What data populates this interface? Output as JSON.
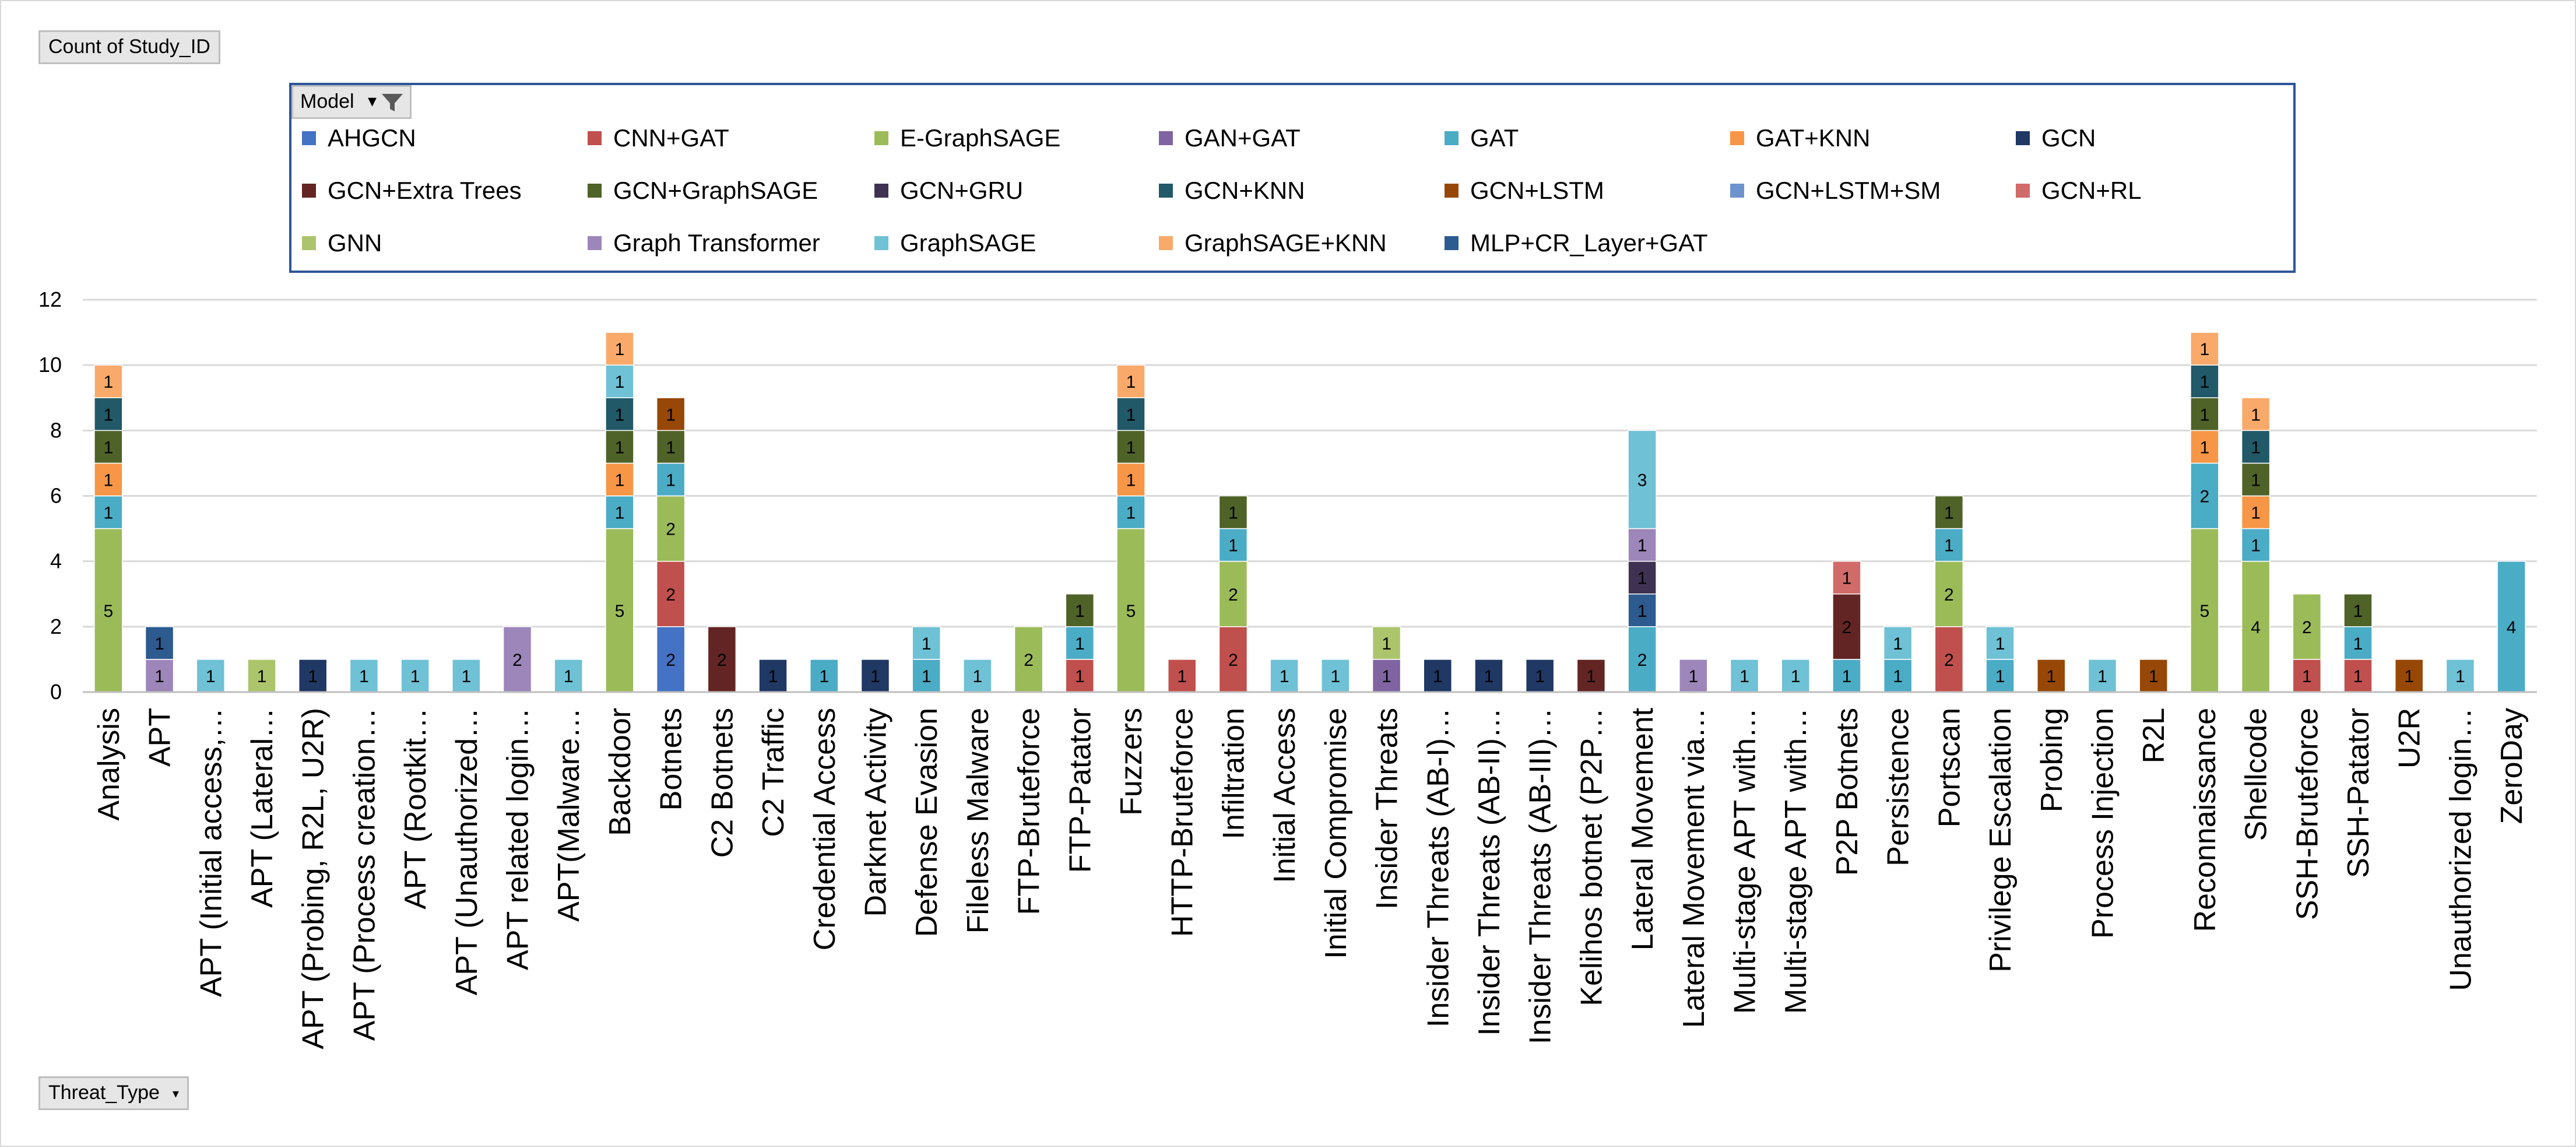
{
  "pivot": {
    "value_field": "Count of Study_ID",
    "axis_field": "Threat_Type",
    "axis_dropdown_icon": "dropdown-arrow-icon",
    "legend_field": "Model",
    "legend_filter_icon": "filter-icon"
  },
  "colors": {
    "AHGCN": "#4472c4",
    "CNN+GAT": "#c0504d",
    "E-GraphSAGE": "#9bbb59",
    "GAN+GAT": "#8064a2",
    "GAT": "#4bacc6",
    "GAT+KNN": "#f79646",
    "GCN": "#1f3864",
    "GCN+Extra Trees": "#632523",
    "GCN+GraphSAGE": "#4f6228",
    "GCN+GRU": "#3f3151",
    "GCN+KNN": "#215968",
    "GCN+LSTM": "#974806",
    "GCN+LSTM+SM": "#6f93cf",
    "GCN+RL": "#d16b69",
    "GNN": "#acc56c",
    "Graph Transformer": "#9d86b9",
    "GraphSAGE": "#6fc1d5",
    "GraphSAGE+KNN": "#f9aa6a",
    "MLP+CR_Layer+GAT": "#2e5b8f"
  },
  "chart_data": {
    "type": "bar",
    "stacked": true,
    "title": "",
    "xlabel": "Threat_Type",
    "ylabel": "Count of Study_ID",
    "ylim": [
      0,
      12
    ],
    "yticks": [
      "0",
      "2",
      "4",
      "6",
      "8",
      "10",
      "12"
    ],
    "grid": true,
    "legend_position": "top",
    "legend_title": "Model",
    "legend": [
      "AHGCN",
      "CNN+GAT",
      "E-GraphSAGE",
      "GAN+GAT",
      "GAT",
      "GAT+KNN",
      "GCN",
      "GCN+Extra Trees",
      "GCN+GraphSAGE",
      "GCN+GRU",
      "GCN+KNN",
      "GCN+LSTM",
      "GCN+LSTM+SM",
      "GCN+RL",
      "GNN",
      "Graph Transformer",
      "GraphSAGE",
      "GraphSAGE+KNN",
      "MLP+CR_Layer+GAT"
    ],
    "categories": [
      "Analysis",
      "APT",
      "APT (Initial access,…",
      "APT (Lateral…",
      "APT (Probing, R2L, U2R)",
      "APT (Process creation…",
      "APT (Rootkit…",
      "APT (Unauthorized…",
      "APT related login…",
      "APT(Malware…",
      "Backdoor",
      "Botnets",
      "C2 Botnets",
      "C2 Traffic",
      "Credential Access",
      "Darknet Activity",
      "Defense Evasion",
      "Fileless Malware",
      "FTP-Bruteforce",
      "FTP-Patator",
      "Fuzzers",
      "HTTP-Bruteforce",
      "Infiltration",
      "Initial Access",
      "Initial Compromise",
      "Insider Threats",
      "Insider Threats (AB-I)…",
      "Insider Threats (AB-II)…",
      "Insider Threats (AB-III)…",
      "Kelihos botnet (P2P…",
      "Lateral Movement",
      "Lateral Movement via…",
      "Multi-stage APT with…",
      "Multi-stage APT with…",
      "P2P Botnets",
      "Persistence",
      "Portscan",
      "Privilege Escalation",
      "Probing",
      "Process Injection",
      "R2L",
      "Reconnaissance",
      "Shellcode",
      "SSH-Bruteforce",
      "SSH-Patator",
      "U2R",
      "Unauthorized login…",
      "ZeroDay"
    ],
    "stacks": [
      [
        {
          "model": "E-GraphSAGE",
          "value": 5
        },
        {
          "model": "GAT",
          "value": 1
        },
        {
          "model": "GAT+KNN",
          "value": 1
        },
        {
          "model": "GCN+GraphSAGE",
          "value": 1
        },
        {
          "model": "GCN+KNN",
          "value": 1
        },
        {
          "model": "GraphSAGE+KNN",
          "value": 1
        }
      ],
      [
        {
          "model": "Graph Transformer",
          "value": 1
        },
        {
          "model": "MLP+CR_Layer+GAT",
          "value": 1
        }
      ],
      [
        {
          "model": "GraphSAGE",
          "value": 1
        }
      ],
      [
        {
          "model": "GNN",
          "value": 1
        }
      ],
      [
        {
          "model": "GCN",
          "value": 1
        }
      ],
      [
        {
          "model": "GraphSAGE",
          "value": 1
        }
      ],
      [
        {
          "model": "GraphSAGE",
          "value": 1
        }
      ],
      [
        {
          "model": "GraphSAGE",
          "value": 1
        }
      ],
      [
        {
          "model": "Graph Transformer",
          "value": 2
        }
      ],
      [
        {
          "model": "GraphSAGE",
          "value": 1
        }
      ],
      [
        {
          "model": "E-GraphSAGE",
          "value": 5
        },
        {
          "model": "GAT",
          "value": 1
        },
        {
          "model": "GAT+KNN",
          "value": 1
        },
        {
          "model": "GCN+GraphSAGE",
          "value": 1
        },
        {
          "model": "GCN+KNN",
          "value": 1
        },
        {
          "model": "GraphSAGE",
          "value": 1
        },
        {
          "model": "GraphSAGE+KNN",
          "value": 1
        }
      ],
      [
        {
          "model": "AHGCN",
          "value": 2
        },
        {
          "model": "CNN+GAT",
          "value": 2
        },
        {
          "model": "E-GraphSAGE",
          "value": 2
        },
        {
          "model": "GAT",
          "value": 1
        },
        {
          "model": "GCN+GraphSAGE",
          "value": 1
        },
        {
          "model": "GCN+LSTM",
          "value": 1
        }
      ],
      [
        {
          "model": "GCN+Extra Trees",
          "value": 2
        }
      ],
      [
        {
          "model": "GCN",
          "value": 1
        }
      ],
      [
        {
          "model": "GAT",
          "value": 1
        }
      ],
      [
        {
          "model": "GCN",
          "value": 1
        }
      ],
      [
        {
          "model": "GAT",
          "value": 1
        },
        {
          "model": "GraphSAGE",
          "value": 1
        }
      ],
      [
        {
          "model": "GraphSAGE",
          "value": 1
        }
      ],
      [
        {
          "model": "E-GraphSAGE",
          "value": 2
        }
      ],
      [
        {
          "model": "CNN+GAT",
          "value": 1
        },
        {
          "model": "GAT",
          "value": 1
        },
        {
          "model": "GCN+GraphSAGE",
          "value": 1
        }
      ],
      [
        {
          "model": "E-GraphSAGE",
          "value": 5
        },
        {
          "model": "GAT",
          "value": 1
        },
        {
          "model": "GAT+KNN",
          "value": 1
        },
        {
          "model": "GCN+GraphSAGE",
          "value": 1
        },
        {
          "model": "GCN+KNN",
          "value": 1
        },
        {
          "model": "GraphSAGE+KNN",
          "value": 1
        }
      ],
      [
        {
          "model": "CNN+GAT",
          "value": 1
        }
      ],
      [
        {
          "model": "CNN+GAT",
          "value": 2
        },
        {
          "model": "E-GraphSAGE",
          "value": 2
        },
        {
          "model": "GAT",
          "value": 1
        },
        {
          "model": "GCN+GraphSAGE",
          "value": 1
        }
      ],
      [
        {
          "model": "GraphSAGE",
          "value": 1
        }
      ],
      [
        {
          "model": "GraphSAGE",
          "value": 1
        }
      ],
      [
        {
          "model": "GAN+GAT",
          "value": 1
        },
        {
          "model": "GNN",
          "value": 1
        }
      ],
      [
        {
          "model": "GCN",
          "value": 1
        }
      ],
      [
        {
          "model": "GCN",
          "value": 1
        }
      ],
      [
        {
          "model": "GCN",
          "value": 1
        }
      ],
      [
        {
          "model": "GCN+Extra Trees",
          "value": 1
        }
      ],
      [
        {
          "model": "GAT",
          "value": 2
        },
        {
          "model": "MLP+CR_Layer+GAT",
          "value": 1
        },
        {
          "model": "GCN+GRU",
          "value": 1
        },
        {
          "model": "Graph Transformer",
          "value": 1
        },
        {
          "model": "GraphSAGE",
          "value": 3
        }
      ],
      [
        {
          "model": "Graph Transformer",
          "value": 1
        }
      ],
      [
        {
          "model": "GraphSAGE",
          "value": 1
        }
      ],
      [
        {
          "model": "GraphSAGE",
          "value": 1
        }
      ],
      [
        {
          "model": "GAT",
          "value": 1
        },
        {
          "model": "GCN+Extra Trees",
          "value": 2
        },
        {
          "model": "GCN+RL",
          "value": 1
        }
      ],
      [
        {
          "model": "GAT",
          "value": 1
        },
        {
          "model": "GraphSAGE",
          "value": 1
        }
      ],
      [
        {
          "model": "CNN+GAT",
          "value": 2
        },
        {
          "model": "E-GraphSAGE",
          "value": 2
        },
        {
          "model": "GAT",
          "value": 1
        },
        {
          "model": "GCN+GraphSAGE",
          "value": 1
        }
      ],
      [
        {
          "model": "GAT",
          "value": 1
        },
        {
          "model": "GraphSAGE",
          "value": 1
        }
      ],
      [
        {
          "model": "GCN+LSTM",
          "value": 1
        }
      ],
      [
        {
          "model": "GraphSAGE",
          "value": 1
        }
      ],
      [
        {
          "model": "GCN+LSTM",
          "value": 1
        }
      ],
      [
        {
          "model": "E-GraphSAGE",
          "value": 5
        },
        {
          "model": "GAT",
          "value": 2
        },
        {
          "model": "GAT+KNN",
          "value": 1
        },
        {
          "model": "GCN+GraphSAGE",
          "value": 1
        },
        {
          "model": "GCN+KNN",
          "value": 1
        },
        {
          "model": "GraphSAGE+KNN",
          "value": 1
        }
      ],
      [
        {
          "model": "E-GraphSAGE",
          "value": 4
        },
        {
          "model": "GAT",
          "value": 1
        },
        {
          "model": "GAT+KNN",
          "value": 1
        },
        {
          "model": "GCN+GraphSAGE",
          "value": 1
        },
        {
          "model": "GCN+KNN",
          "value": 1
        },
        {
          "model": "GraphSAGE+KNN",
          "value": 1
        }
      ],
      [
        {
          "model": "CNN+GAT",
          "value": 1
        },
        {
          "model": "E-GraphSAGE",
          "value": 2
        }
      ],
      [
        {
          "model": "CNN+GAT",
          "value": 1
        },
        {
          "model": "GAT",
          "value": 1
        },
        {
          "model": "GCN+GraphSAGE",
          "value": 1
        }
      ],
      [
        {
          "model": "GCN+LSTM",
          "value": 1
        }
      ],
      [
        {
          "model": "GraphSAGE",
          "value": 1
        }
      ],
      [
        {
          "model": "GAT",
          "value": 4
        }
      ]
    ]
  }
}
